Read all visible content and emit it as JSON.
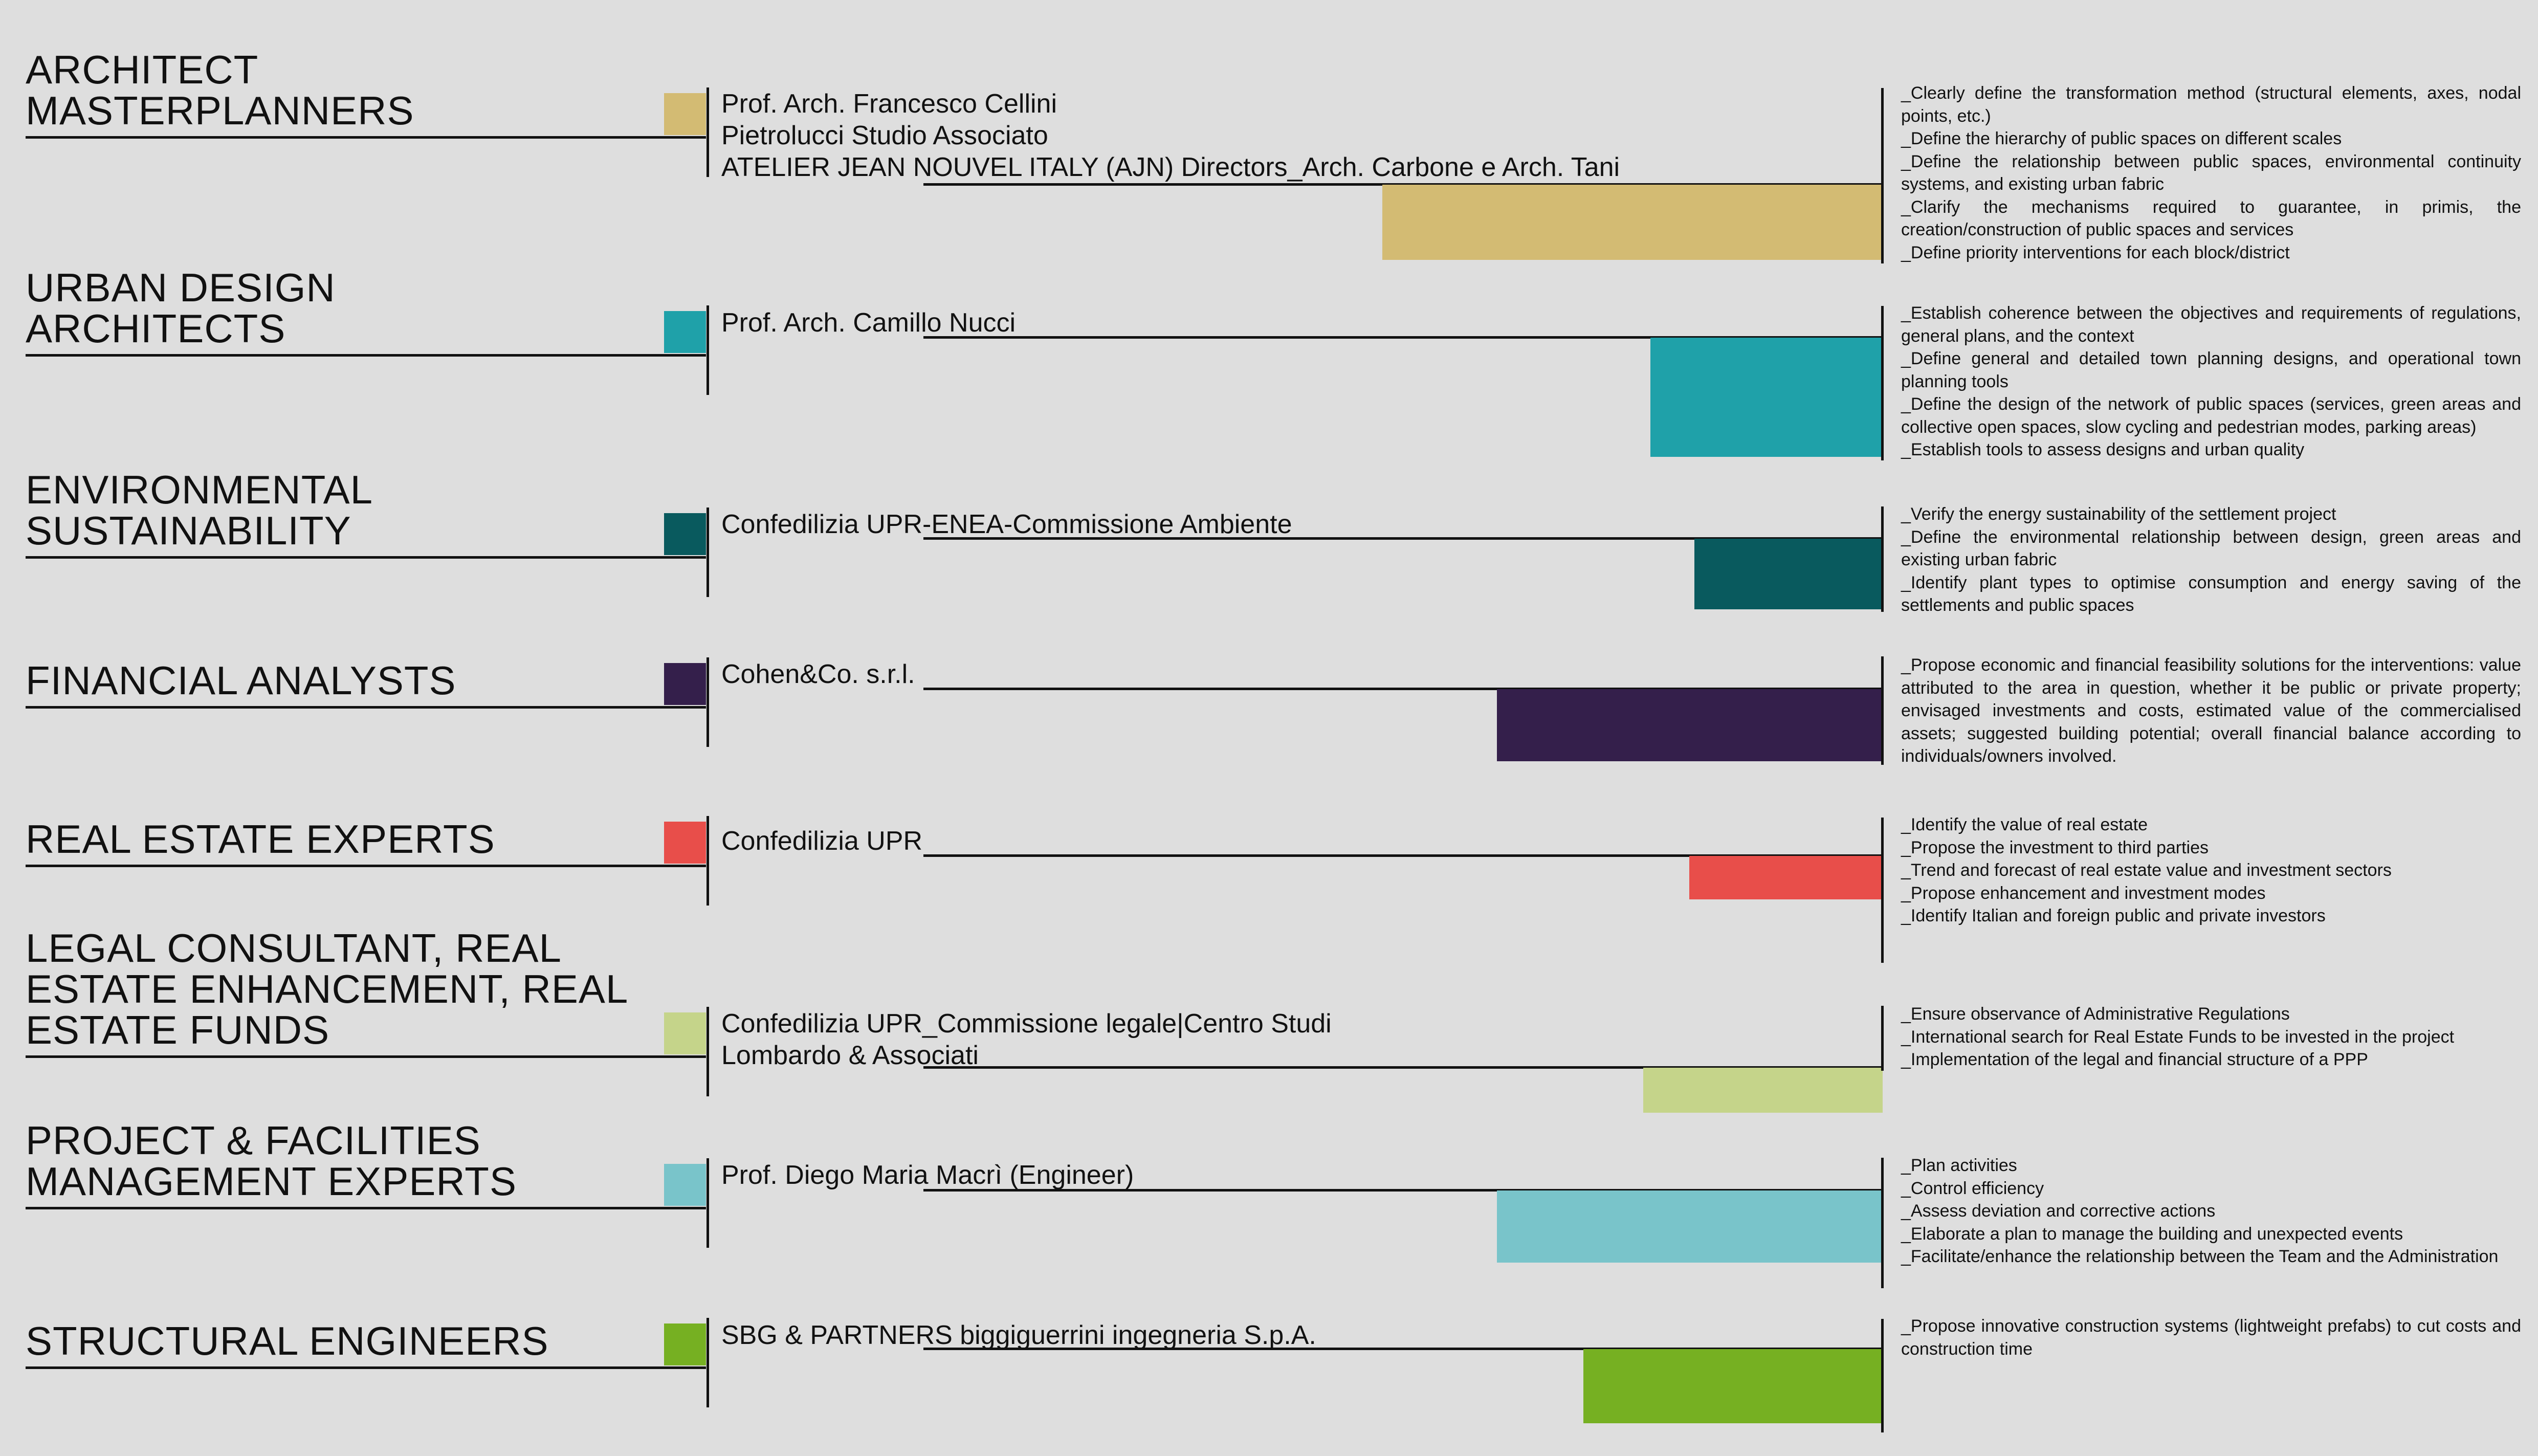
{
  "rows": [
    {
      "role": "ARCHITECT\nMASTERPLANNERS",
      "color": "#d3bb73",
      "members": "Prof. Arch. Francesco Cellini\nPietrolucci Studio Associato\nATELIER JEAN NOUVEL ITALY (AJN) Directors_Arch. Carbone e Arch. Tani",
      "tasks": [
        "_Clearly define the transformation method (structural elements, axes, nodal points, etc.)",
        "_Define the hierarchy of public spaces on different scales",
        "_Define the relationship between public spaces, environmental continuity systems, and existing urban fabric",
        "_Clarify the mechanisms required to guarantee, in primis, the creation/construction of public spaces and services",
        "_Define priority interventions for each block/district"
      ]
    },
    {
      "role": "URBAN DESIGN\nARCHITECTS",
      "color": "#1fa1a9",
      "members": "Prof. Arch. Camillo Nucci",
      "tasks": [
        "_Establish coherence between the objectives and requirements of regulations, general plans, and the context",
        "_Define general and detailed town planning designs, and operational town planning tools",
        "_Define the design of the network of public spaces (services, green areas and collective open spaces, slow cycling and pedestrian modes, parking areas)",
        "_Establish tools to assess designs and urban quality"
      ]
    },
    {
      "role": "ENVIRONMENTAL\nSUSTAINABILITY",
      "color": "#095a5e",
      "members": "Confedilizia UPR-ENEA-Commissione Ambiente",
      "tasks": [
        "_Verify the energy sustainability of the settlement project",
        "_Define the environmental relationship between design, green areas and existing urban fabric",
        "_Identify plant types to optimise consumption and energy saving of the settlements and public spaces"
      ]
    },
    {
      "role": "FINANCIAL ANALYSTS",
      "color": "#341f4b",
      "members": "Cohen&Co. s.r.l.",
      "tasks": [
        "_Propose economic and financial feasibility solutions for the interventions: value attributed to the area in question, whether it be public or private property; envisaged investments and costs, estimated value of the commercialised assets; suggested building potential; overall financial balance according to individuals/owners involved."
      ]
    },
    {
      "role": "REAL ESTATE EXPERTS",
      "color": "#e84e4a",
      "members": "Confedilizia UPR",
      "tasks": [
        "_Identify the value of real estate",
        "_Propose the investment to third parties",
        "_Trend and forecast of real estate value and investment sectors",
        "_Propose enhancement and investment modes",
        "_Identify Italian and foreign public and private investors"
      ]
    },
    {
      "role": "LEGAL CONSULTANT, REAL\nESTATE ENHANCEMENT, REAL\nESTATE FUNDS",
      "color": "#c5d48a",
      "members": "Confedilizia UPR_Commissione legale|Centro Studi\nLombardo & Associati",
      "tasks": [
        "_Ensure observance of Administrative Regulations",
        "_International search for Real Estate Funds to be invested in the project",
        "_Implementation of the legal and financial structure of a PPP"
      ]
    },
    {
      "role": "PROJECT & FACILITIES\nMANAGEMENT EXPERTS",
      "color": "#79c4ca",
      "members": "Prof. Diego Maria Macrì (Engineer)",
      "tasks": [
        "_Plan activities",
        "_Control efficiency",
        "_Assess deviation and corrective actions",
        "_Elaborate a plan to manage the building and unexpected events",
        "_Facilitate/enhance the relationship between the Team and the Administration"
      ]
    },
    {
      "role": "STRUCTURAL ENGINEERS",
      "color": "#76b022",
      "members": "SBG & PARTNERS biggiguerrini ingegneria S.p.A.",
      "tasks": [
        "_Propose innovative construction systems (lightweight prefabs) to cut costs and construction time"
      ]
    }
  ]
}
